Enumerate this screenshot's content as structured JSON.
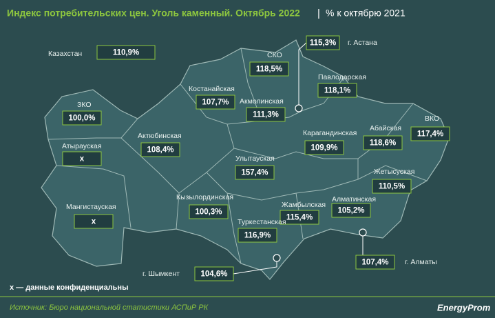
{
  "title": {
    "main": "Индекс потребительских цен. Уголь каменный. Октябрь 2022",
    "separator": "|",
    "sub": "% к октябрю 2021"
  },
  "regions": [
    {
      "name": "Казахстан",
      "value": "110,9%"
    },
    {
      "name": "г. Астана",
      "value": "115,3%"
    },
    {
      "name": "СКО",
      "value": "118,5%"
    },
    {
      "name": "Павлодарская",
      "value": "118,1%"
    },
    {
      "name": "Костанайская",
      "value": "107,7%"
    },
    {
      "name": "Акмолинская",
      "value": "111,3%"
    },
    {
      "name": "ЗКО",
      "value": "100,0%"
    },
    {
      "name": "ВКО",
      "value": "117,4%"
    },
    {
      "name": "Абайская",
      "value": "118,6%"
    },
    {
      "name": "Карагандинская",
      "value": "109,9%"
    },
    {
      "name": "Актюбинская",
      "value": "108,4%"
    },
    {
      "name": "Атырауская",
      "value": "х"
    },
    {
      "name": "Улытауская",
      "value": "157,4%"
    },
    {
      "name": "Жетысуская",
      "value": "110,5%"
    },
    {
      "name": "Кызылординская",
      "value": "100,3%"
    },
    {
      "name": "Жамбылская",
      "value": "115,4%"
    },
    {
      "name": "Алматинская",
      "value": "105,2%"
    },
    {
      "name": "Мангистауская",
      "value": "х"
    },
    {
      "name": "Туркестанская",
      "value": "116,9%"
    },
    {
      "name": "г. Алматы",
      "value": "107,4%"
    },
    {
      "name": "г. Шымкент",
      "value": "104,6%"
    }
  ],
  "footnote": "х — данные конфиденциальны",
  "source": "Источник: Бюро национальной статистики АСПиР РК",
  "logo": "EnergyProm"
}
